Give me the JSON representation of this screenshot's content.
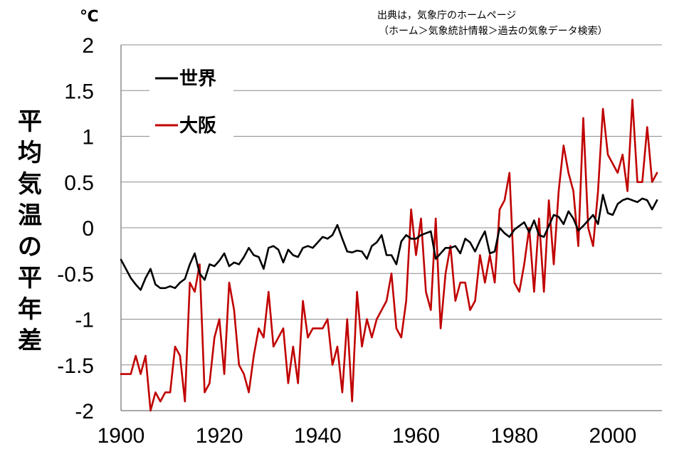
{
  "chart_data": {
    "type": "line",
    "unit_label": "℃",
    "ylabel": "平均気温の平年差",
    "source_lines": [
      "出典は，気象庁のホームページ",
      "（ホーム＞気象統計情報＞過去の気象データ検索）"
    ],
    "xlim": [
      1900,
      2010
    ],
    "ylim": [
      -2,
      2
    ],
    "y_ticks": [
      "2",
      "1.5",
      "1",
      "0.5",
      "0",
      "-0.5",
      "-1",
      "-1.5",
      "-2"
    ],
    "y_tick_values": [
      2,
      1.5,
      1,
      0.5,
      0,
      -0.5,
      -1,
      -1.5,
      -2
    ],
    "x_ticks": [
      "1900",
      "1920",
      "1940",
      "1960",
      "1980",
      "2000"
    ],
    "x_tick_values": [
      1900,
      1920,
      1940,
      1960,
      1980,
      2000
    ],
    "grid": "horizontal",
    "legend_position": "top-left",
    "x": [
      1900,
      1901,
      1902,
      1903,
      1904,
      1905,
      1906,
      1907,
      1908,
      1909,
      1910,
      1911,
      1912,
      1913,
      1914,
      1915,
      1916,
      1917,
      1918,
      1919,
      1920,
      1921,
      1922,
      1923,
      1924,
      1925,
      1926,
      1927,
      1928,
      1929,
      1930,
      1931,
      1932,
      1933,
      1934,
      1935,
      1936,
      1937,
      1938,
      1939,
      1940,
      1941,
      1942,
      1943,
      1944,
      1945,
      1946,
      1947,
      1948,
      1949,
      1950,
      1951,
      1952,
      1953,
      1954,
      1955,
      1956,
      1957,
      1958,
      1959,
      1960,
      1961,
      1962,
      1963,
      1964,
      1965,
      1966,
      1967,
      1968,
      1969,
      1970,
      1971,
      1972,
      1973,
      1974,
      1975,
      1976,
      1977,
      1978,
      1979,
      1980,
      1981,
      1982,
      1983,
      1984,
      1985,
      1986,
      1987,
      1988,
      1989,
      1990,
      1991,
      1992,
      1993,
      1994,
      1995,
      1996,
      1997,
      1998,
      1999,
      2000,
      2001,
      2002,
      2003,
      2004,
      2005,
      2006,
      2007,
      2008,
      2009
    ],
    "series": [
      {
        "name": "世界",
        "color": "#000000",
        "values": [
          -0.35,
          -0.45,
          -0.55,
          -0.62,
          -0.68,
          -0.55,
          -0.45,
          -0.62,
          -0.66,
          -0.66,
          -0.64,
          -0.66,
          -0.6,
          -0.56,
          -0.4,
          -0.28,
          -0.5,
          -0.57,
          -0.4,
          -0.42,
          -0.36,
          -0.28,
          -0.42,
          -0.38,
          -0.4,
          -0.32,
          -0.22,
          -0.3,
          -0.32,
          -0.45,
          -0.22,
          -0.2,
          -0.24,
          -0.38,
          -0.24,
          -0.3,
          -0.32,
          -0.22,
          -0.2,
          -0.22,
          -0.16,
          -0.1,
          -0.12,
          -0.08,
          0.03,
          -0.12,
          -0.26,
          -0.27,
          -0.25,
          -0.26,
          -0.34,
          -0.2,
          -0.16,
          -0.08,
          -0.3,
          -0.3,
          -0.4,
          -0.15,
          -0.08,
          -0.12,
          -0.12,
          -0.08,
          -0.06,
          -0.04,
          -0.34,
          -0.28,
          -0.22,
          -0.22,
          -0.2,
          -0.28,
          -0.12,
          -0.16,
          -0.26,
          -0.14,
          -0.04,
          -0.28,
          -0.26,
          0.0,
          -0.06,
          -0.1,
          -0.02,
          0.02,
          0.06,
          -0.05,
          0.08,
          -0.08,
          -0.1,
          0.02,
          0.14,
          0.12,
          0.04,
          0.18,
          0.1,
          -0.03,
          0.02,
          0.08,
          0.14,
          0.04,
          0.36,
          0.16,
          0.14,
          0.26,
          0.3,
          0.32,
          0.3,
          0.28,
          0.32,
          0.3,
          0.2,
          0.3
        ]
      },
      {
        "name": "大阪",
        "color": "#c00000",
        "values": [
          -1.6,
          -1.6,
          -1.6,
          -1.4,
          -1.6,
          -1.4,
          -2.0,
          -1.8,
          -1.9,
          -1.8,
          -1.8,
          -1.3,
          -1.4,
          -1.9,
          -0.6,
          -0.7,
          -0.4,
          -1.8,
          -1.7,
          -1.2,
          -1.0,
          -1.6,
          -0.6,
          -0.9,
          -1.5,
          -1.6,
          -1.8,
          -1.4,
          -1.1,
          -1.2,
          -0.7,
          -1.3,
          -1.2,
          -1.1,
          -1.7,
          -1.3,
          -1.7,
          -0.8,
          -1.2,
          -1.1,
          -1.1,
          -1.1,
          -1.0,
          -1.5,
          -1.3,
          -1.8,
          -1.0,
          -1.9,
          -0.7,
          -1.3,
          -1.0,
          -1.2,
          -1.0,
          -0.9,
          -0.8,
          -0.5,
          -1.1,
          -1.2,
          -0.8,
          0.2,
          -0.3,
          0.1,
          -0.7,
          -0.9,
          0.1,
          -1.1,
          -0.5,
          -0.2,
          -0.8,
          -0.6,
          -0.6,
          -0.9,
          -0.8,
          -0.3,
          -0.6,
          -0.3,
          -0.6,
          0.2,
          0.3,
          0.6,
          -0.6,
          -0.7,
          -0.4,
          0.0,
          -0.7,
          0.1,
          -0.7,
          0.3,
          -0.4,
          0.4,
          0.9,
          0.6,
          0.4,
          -0.2,
          1.2,
          0.0,
          -0.2,
          0.4,
          1.3,
          0.8,
          0.7,
          0.6,
          0.8,
          0.4,
          1.4,
          0.5,
          0.5,
          1.1,
          0.5,
          0.6
        ]
      }
    ]
  }
}
